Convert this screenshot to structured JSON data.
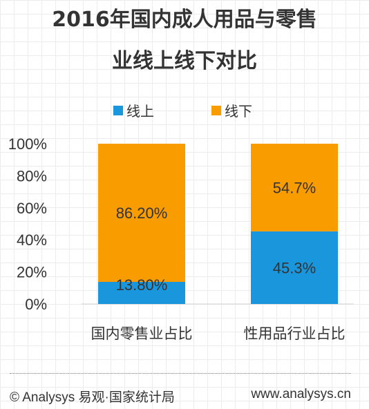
{
  "title_line1": "2016年国内成人用品与零售",
  "title_line2": "业线上线下对比",
  "colors": {
    "online": "#1a96dc",
    "offline": "#f99c00",
    "text": "#333333",
    "axis": "#d0d0d0"
  },
  "chart_data": {
    "type": "bar",
    "stacked": true,
    "percent": true,
    "categories": [
      "国内零售业占比",
      "性用品行业占比"
    ],
    "series": [
      {
        "name": "线上",
        "values": [
          13.8,
          45.3
        ],
        "labels": [
          "13.80%",
          "45.3%"
        ]
      },
      {
        "name": "线下",
        "values": [
          86.2,
          54.7
        ],
        "labels": [
          "86.20%",
          "54.7%"
        ]
      }
    ],
    "ylim": [
      0,
      100
    ],
    "yticks": [
      "0%",
      "20%",
      "40%",
      "60%",
      "80%",
      "100%"
    ],
    "legend": "top",
    "grid": false
  },
  "footer": {
    "left": "© Analysys 易观·国家统计局",
    "right": "www.analysys.cn"
  }
}
